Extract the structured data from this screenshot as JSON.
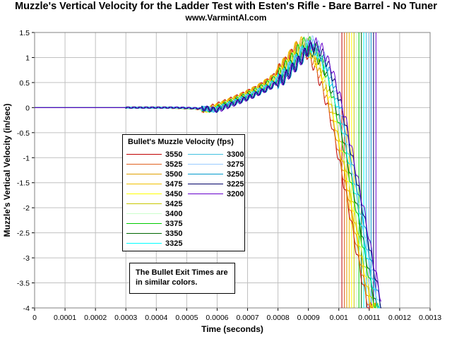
{
  "header": {
    "title": "Muzzle's Vertical Velocity for the Ladder Test with Esten's Rifle - Bare Barrel - No Tuner",
    "subtitle": "www.VarmintAl.com"
  },
  "note": {
    "line1": "The Bullet Exit Times are",
    "line2": "in similar colors."
  },
  "chart_data": {
    "type": "line",
    "title": "Muzzle's Vertical Velocity for the Ladder Test with Esten's Rifle - Bare Barrel - No Tuner",
    "subtitle": "www.VarmintAl.com",
    "xlabel": "Time (seconds)",
    "ylabel": "Muzzle's Vertical Velocity (in/sec)",
    "xlim": [
      0,
      0.0013
    ],
    "ylim": [
      -4,
      1.5
    ],
    "x_ticks": [
      "0",
      "0.0001",
      "0.0002",
      "0.0003",
      "0.0004",
      "0.0005",
      "0.0006",
      "0.0007",
      "0.0008",
      "0.0009",
      "0.001",
      "0.0011",
      "0.0012",
      "0.0013"
    ],
    "y_ticks": [
      "1.5",
      "1",
      "0.5",
      "0",
      "-0.5",
      "-1",
      "-1.5",
      "-2",
      "-2.5",
      "-3",
      "-3.5",
      "-4"
    ],
    "grid": true,
    "legend_title": "Bullet's Muzzle Velocity (fps)",
    "legend_placement": "center-left",
    "base_curve": {
      "x": [
        0,
        0.0003,
        0.00045,
        0.00055,
        0.00058,
        0.0006,
        0.00065,
        0.0007,
        0.00075,
        0.0008,
        0.00085,
        0.00088,
        0.0009,
        0.00092,
        0.00095,
        0.00098,
        0.001,
        0.00102,
        0.00104,
        0.00106,
        0.00108,
        0.0011,
        0.00112
      ],
      "y": [
        0,
        0,
        0,
        -0.02,
        -0.05,
        0.0,
        0.12,
        0.25,
        0.4,
        0.6,
        0.95,
        1.2,
        1.25,
        1.15,
        0.8,
        0.2,
        -0.3,
        -0.9,
        -1.5,
        -2.1,
        -2.8,
        -3.4,
        -4.0
      ]
    },
    "series": [
      {
        "name": "3550",
        "color": "#c00000",
        "exit_time": 0.00101
      },
      {
        "name": "3525",
        "color": "#e06020",
        "exit_time": 0.001018
      },
      {
        "name": "3500",
        "color": "#e0a000",
        "exit_time": 0.001026
      },
      {
        "name": "3475",
        "color": "#f0c000",
        "exit_time": 0.001034
      },
      {
        "name": "3450",
        "color": "#ffff00",
        "exit_time": 0.001042
      },
      {
        "name": "3425",
        "color": "#c8c800",
        "exit_time": 0.00105
      },
      {
        "name": "3400",
        "color": "#ccffcc",
        "exit_time": 0.001058
      },
      {
        "name": "3375",
        "color": "#00cc00",
        "exit_time": 0.001066
      },
      {
        "name": "3350",
        "color": "#006600",
        "exit_time": 0.001074
      },
      {
        "name": "3325",
        "color": "#00ffff",
        "exit_time": 0.001082
      },
      {
        "name": "3300",
        "color": "#40c0e0",
        "exit_time": 0.00109
      },
      {
        "name": "3275",
        "color": "#99ccff",
        "exit_time": 0.001098
      },
      {
        "name": "3250",
        "color": "#0099cc",
        "exit_time": 0.001106
      },
      {
        "name": "3225",
        "color": "#000066",
        "exit_time": 0.001114
      },
      {
        "name": "3200",
        "color": "#6600cc",
        "exit_time": 0.001122
      }
    ]
  }
}
